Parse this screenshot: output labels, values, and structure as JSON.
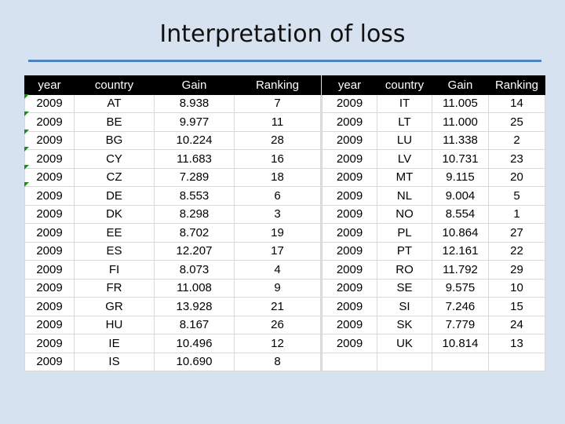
{
  "title": "Interpretation of loss",
  "columns": [
    "year",
    "country",
    "Gain",
    "Ranking"
  ],
  "left_rows": [
    [
      "2009",
      "AT",
      "8.938",
      "7"
    ],
    [
      "2009",
      "BE",
      "9.977",
      "11"
    ],
    [
      "2009",
      "BG",
      "10.224",
      "28"
    ],
    [
      "2009",
      "CY",
      "11.683",
      "16"
    ],
    [
      "2009",
      "CZ",
      "7.289",
      "18"
    ],
    [
      "2009",
      "DE",
      "8.553",
      "6"
    ],
    [
      "2009",
      "DK",
      "8.298",
      "3"
    ],
    [
      "2009",
      "EE",
      "8.702",
      "19"
    ],
    [
      "2009",
      "ES",
      "12.207",
      "17"
    ],
    [
      "2009",
      "FI",
      "8.073",
      "4"
    ],
    [
      "2009",
      "FR",
      "11.008",
      "9"
    ],
    [
      "2009",
      "GR",
      "13.928",
      "21"
    ],
    [
      "2009",
      "HU",
      "8.167",
      "26"
    ],
    [
      "2009",
      "IE",
      "10.496",
      "12"
    ],
    [
      "2009",
      "IS",
      "10.690",
      "8"
    ]
  ],
  "right_rows": [
    [
      "2009",
      "IT",
      "11.005",
      "14"
    ],
    [
      "2009",
      "LT",
      "11.000",
      "25"
    ],
    [
      "2009",
      "LU",
      "11.338",
      "2"
    ],
    [
      "2009",
      "LV",
      "10.731",
      "23"
    ],
    [
      "2009",
      "MT",
      "9.115",
      "20"
    ],
    [
      "2009",
      "NL",
      "9.004",
      "5"
    ],
    [
      "2009",
      "NO",
      "8.554",
      "1"
    ],
    [
      "2009",
      "PL",
      "10.864",
      "27"
    ],
    [
      "2009",
      "PT",
      "12.161",
      "22"
    ],
    [
      "2009",
      "RO",
      "11.792",
      "29"
    ],
    [
      "2009",
      "SE",
      "9.575",
      "10"
    ],
    [
      "2009",
      "SI",
      "7.246",
      "15"
    ],
    [
      "2009",
      "SK",
      "7.779",
      "24"
    ],
    [
      "2009",
      "UK",
      "10.814",
      "13"
    ]
  ]
}
